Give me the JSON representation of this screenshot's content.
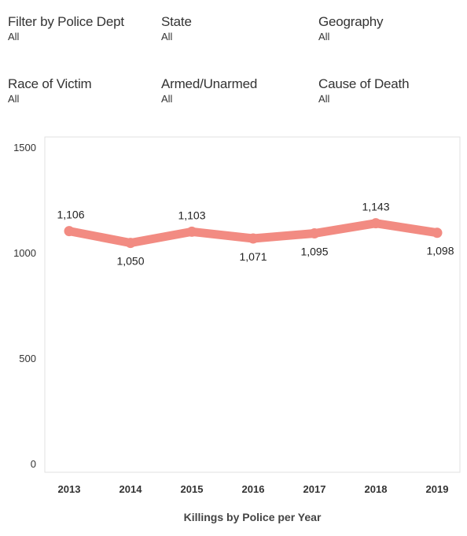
{
  "filters": [
    {
      "label": "Filter by Police Dept",
      "value": "All"
    },
    {
      "label": "State",
      "value": "All"
    },
    {
      "label": "Geography",
      "value": "All"
    },
    {
      "label": "Race of Victim",
      "value": "All"
    },
    {
      "label": "Armed/Unarmed",
      "value": "All"
    },
    {
      "label": "Cause of Death",
      "value": "All"
    }
  ],
  "chart_data": {
    "type": "line",
    "x": [
      "2013",
      "2014",
      "2015",
      "2016",
      "2017",
      "2018",
      "2019"
    ],
    "series": [
      {
        "values": [
          1106,
          1050,
          1103,
          1071,
          1095,
          1143,
          1098
        ],
        "color": "#f28b82"
      }
    ],
    "data_labels": [
      "1,106",
      "1,050",
      "1,103",
      "1,071",
      "1,095",
      "1,143",
      "1,098"
    ],
    "y_ticks": [
      0,
      500,
      1000,
      1500
    ],
    "ylim": [
      0,
      1500
    ],
    "xlabel": "Killings by Police per Year",
    "ylabel": "",
    "grid": false
  }
}
